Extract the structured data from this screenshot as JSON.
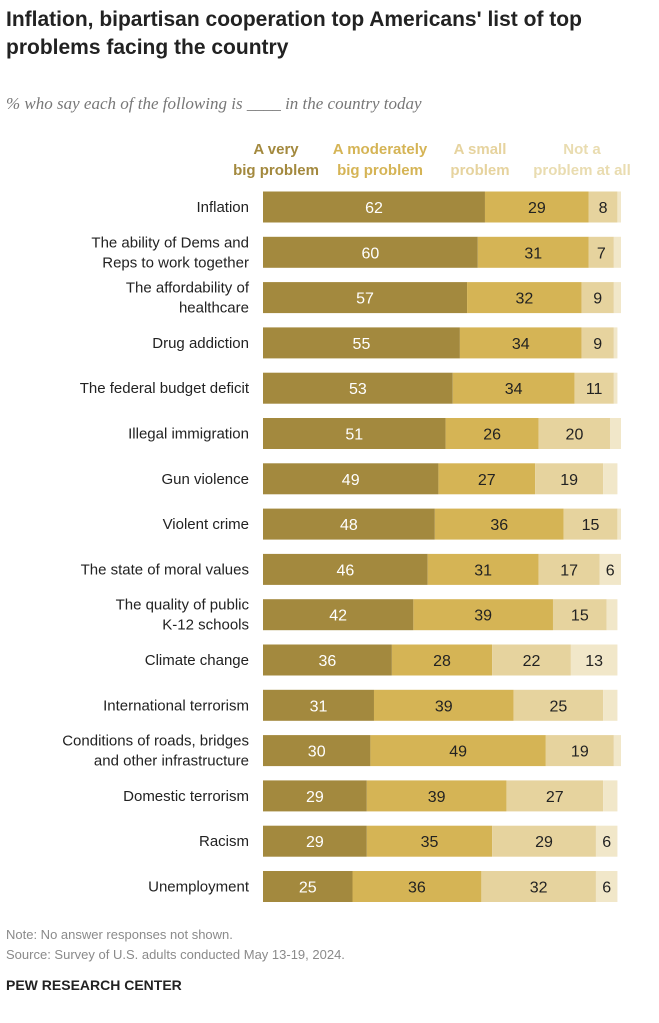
{
  "chart_data": {
    "type": "bar",
    "orientation": "horizontal-stacked",
    "title": "Inflation, bipartisan cooperation top Americans' list of top problems facing the country",
    "subtitle": "% who say each of the following is ____ in the country today",
    "series": [
      {
        "name": "A very big problem",
        "legend_lines": [
          "A very",
          "big problem"
        ],
        "color": "#a3893e",
        "text_color": "#ffffff",
        "values": [
          62,
          60,
          57,
          55,
          53,
          51,
          49,
          48,
          46,
          42,
          36,
          31,
          30,
          29,
          29,
          25
        ]
      },
      {
        "name": "A moderately big problem",
        "legend_lines": [
          "A moderately",
          "big problem"
        ],
        "color": "#d5b455",
        "text_color": "#222222",
        "values": [
          29,
          31,
          32,
          34,
          34,
          26,
          27,
          36,
          31,
          39,
          28,
          39,
          49,
          39,
          35,
          36
        ]
      },
      {
        "name": "A small problem",
        "legend_lines": [
          "A small",
          "problem"
        ],
        "color": "#e6d39e",
        "text_color": "#222222",
        "values": [
          8,
          7,
          9,
          9,
          11,
          20,
          19,
          15,
          17,
          15,
          22,
          25,
          19,
          27,
          29,
          32
        ]
      },
      {
        "name": "Not a problem at all",
        "legend_lines": [
          "Not a",
          "problem at all"
        ],
        "color": "#f1e7c9",
        "text_color": "#222222",
        "values": [
          1,
          2,
          2,
          1,
          1,
          3,
          4,
          1,
          6,
          3,
          13,
          4,
          2,
          4,
          6,
          6
        ],
        "labeled": [
          false,
          false,
          false,
          false,
          false,
          false,
          false,
          false,
          true,
          false,
          true,
          false,
          false,
          false,
          true,
          true
        ]
      }
    ],
    "categories": [
      [
        "Inflation"
      ],
      [
        "The ability of Dems and",
        "Reps to work together"
      ],
      [
        "The affordability of",
        "healthcare"
      ],
      [
        "Drug addiction"
      ],
      [
        "The federal budget deficit"
      ],
      [
        "Illegal immigration"
      ],
      [
        "Gun violence"
      ],
      [
        "Violent crime"
      ],
      [
        "The state of moral values"
      ],
      [
        "The quality of public",
        "K-12 schools"
      ],
      [
        "Climate change"
      ],
      [
        "International terrorism"
      ],
      [
        "Conditions of roads, bridges",
        "and other infrastructure"
      ],
      [
        "Domestic terrorism"
      ],
      [
        "Racism"
      ],
      [
        "Unemployment"
      ]
    ],
    "xlim": [
      0,
      100
    ],
    "grid": false
  },
  "footer": {
    "note": "Note: No answer responses not shown.",
    "source": "Source: Survey of U.S. adults conducted May 13-19, 2024.",
    "brand": "PEW RESEARCH CENTER"
  }
}
